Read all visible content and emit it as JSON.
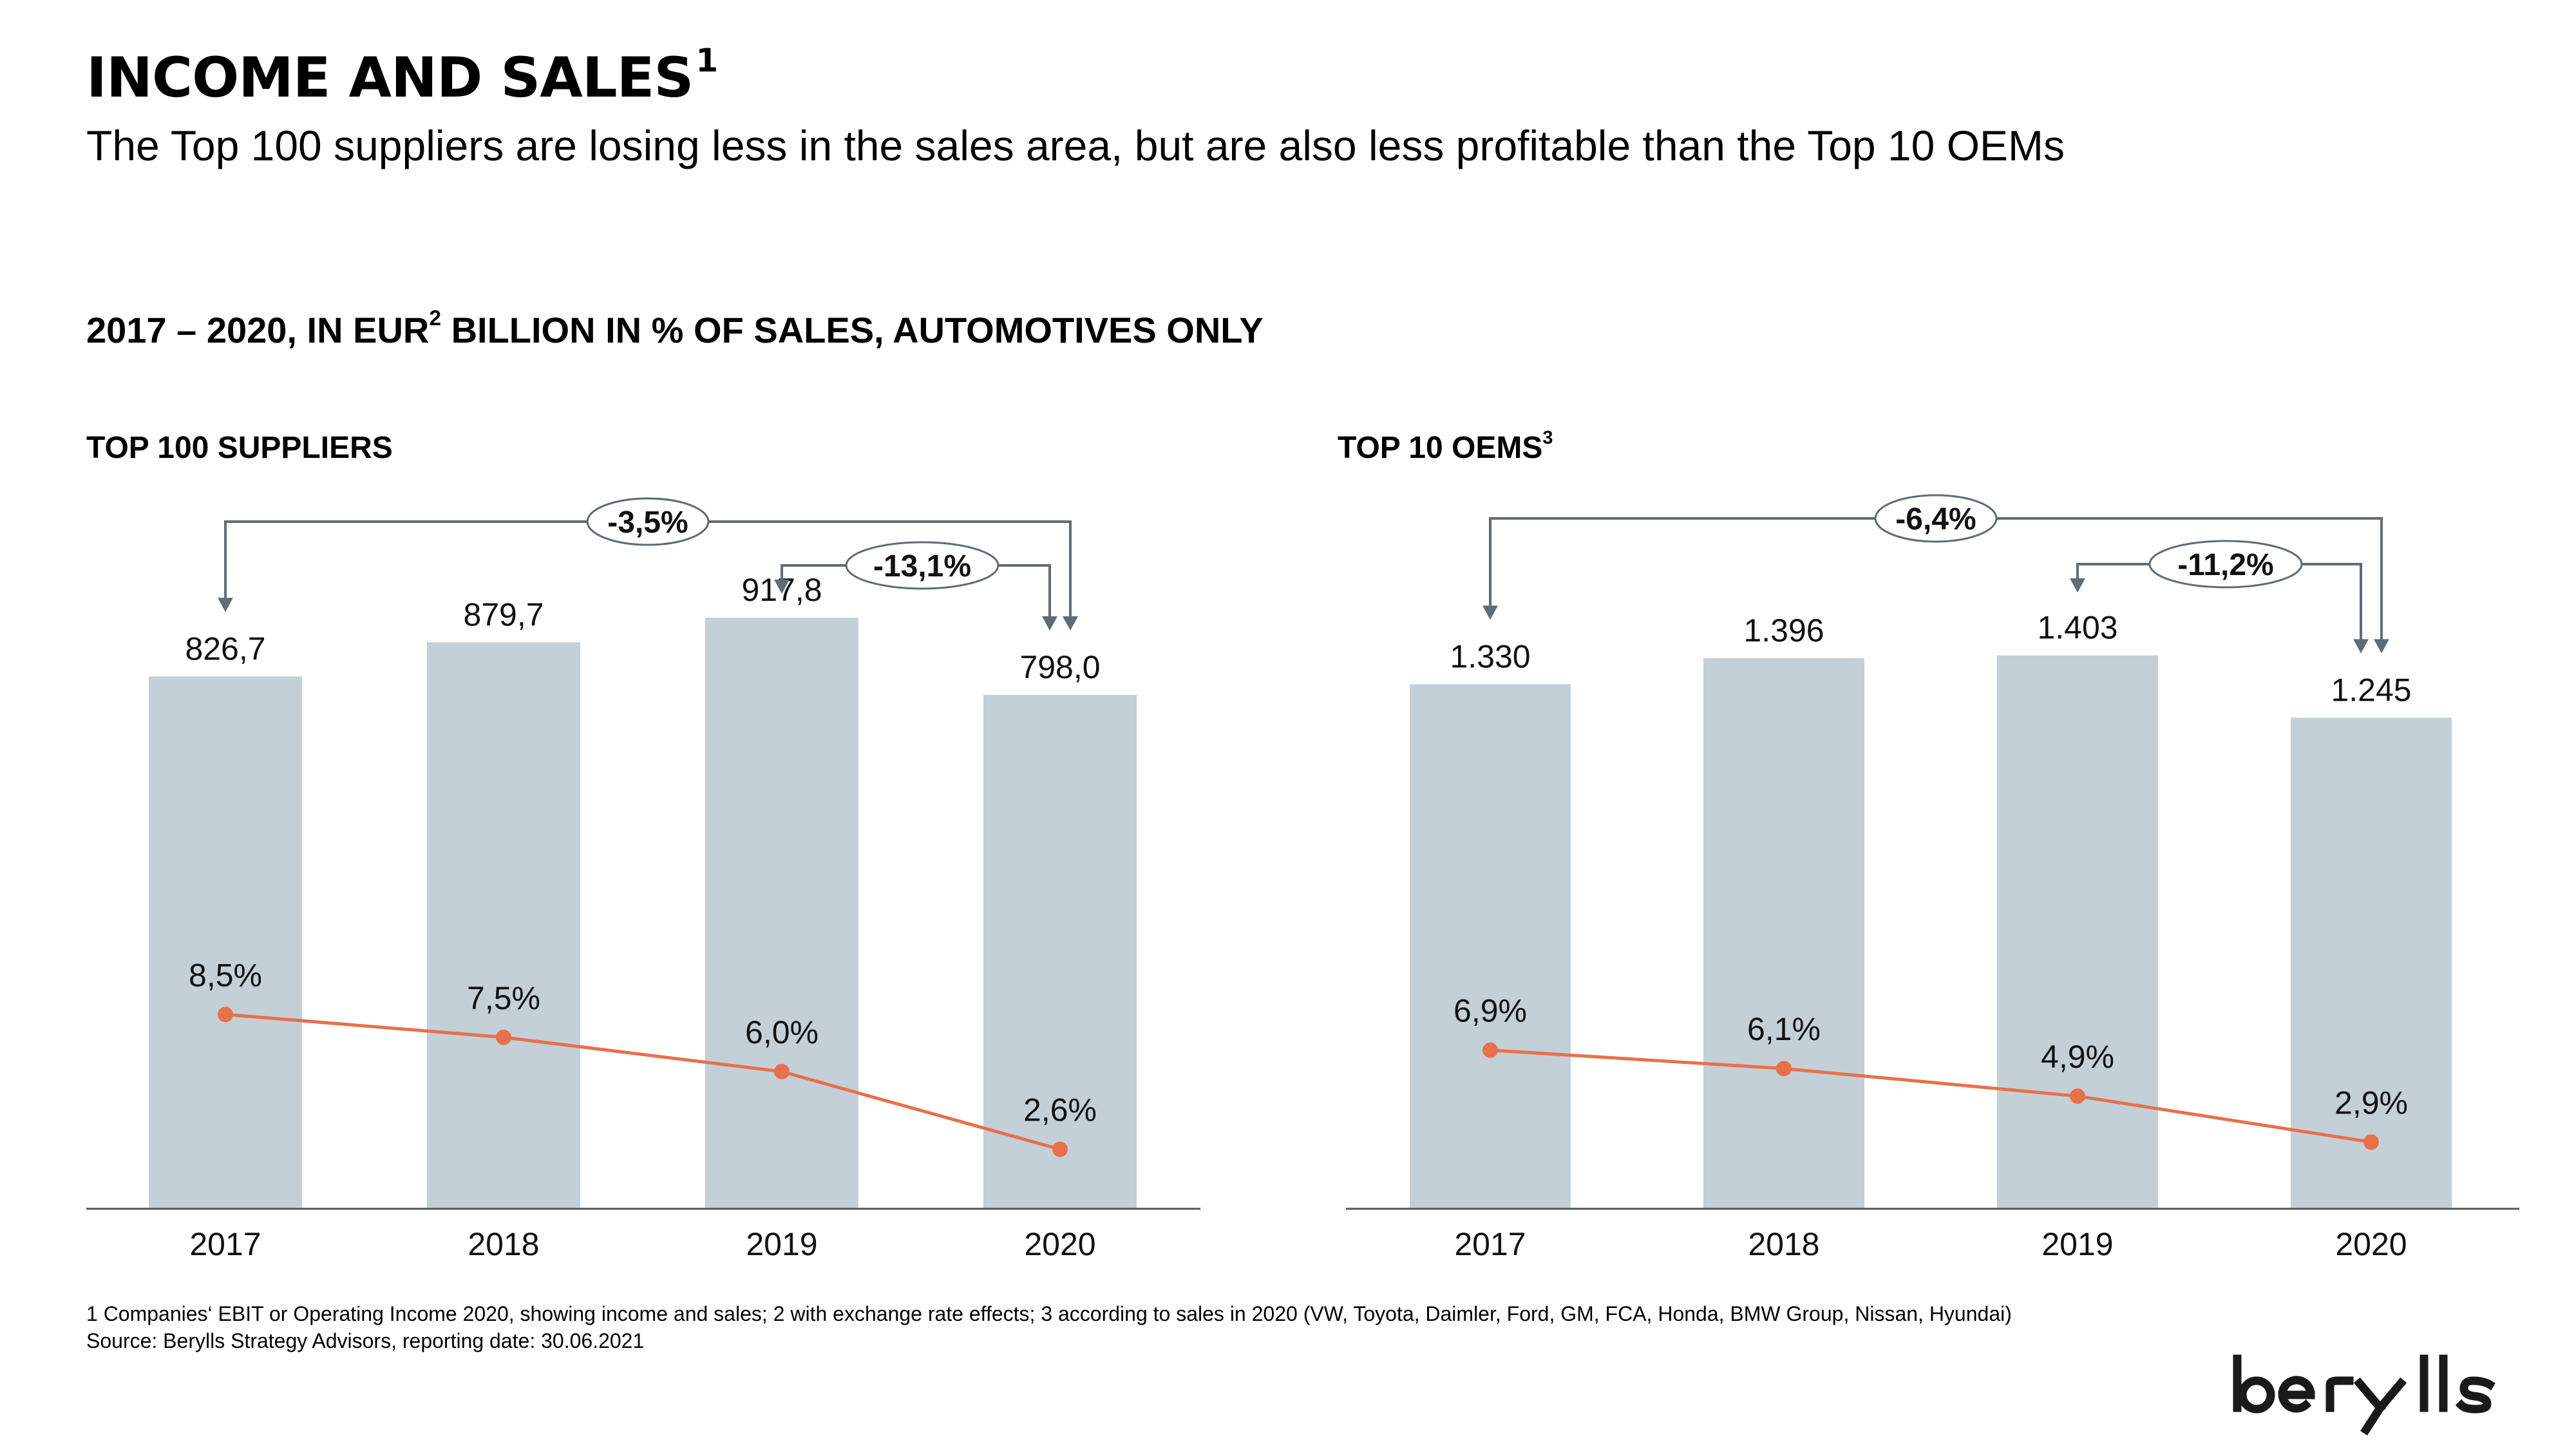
{
  "title": "INCOME AND SALES",
  "title_sup": "1",
  "subtitle": "The Top 100 suppliers are losing less in the sales area, but are also less profitable than the Top 10 OEMs",
  "section_heading": {
    "part1": "2017 – 2020, IN EUR",
    "sup": "2",
    "part2": " BILLION IN % OF SALES, AUTOMOTIVES ONLY"
  },
  "colors": {
    "bar": "#c4d0d8",
    "line": "#e8704a",
    "axis": "#555555",
    "bracket": "#5f6c78"
  },
  "chart_data": [
    {
      "type": "bar",
      "panel_title": "TOP 100 SUPPLIERS",
      "panel_title_sup": "",
      "categories": [
        "2017",
        "2018",
        "2019",
        "2020"
      ],
      "series": [
        {
          "values": [
            826.7,
            879.7,
            917.8,
            798.0
          ],
          "labels": [
            "826,7",
            "879,7",
            "917,8",
            "798,0"
          ]
        },
        {
          "type": "line",
          "values": [
            8.5,
            7.5,
            6.0,
            2.6
          ],
          "labels": [
            "8,5%",
            "7,5%",
            "6,0%",
            "2,6%"
          ]
        }
      ],
      "annotations": [
        {
          "label": "-3,5%",
          "from": "2017",
          "to": "2020"
        },
        {
          "label": "-13,1%",
          "from": "2019",
          "to": "2020"
        }
      ]
    },
    {
      "type": "bar",
      "panel_title": "TOP 10 OEMS",
      "panel_title_sup": "3",
      "categories": [
        "2017",
        "2018",
        "2019",
        "2020"
      ],
      "series": [
        {
          "values": [
            1330,
            1396,
            1403,
            1245
          ],
          "labels": [
            "1.330",
            "1.396",
            "1.403",
            "1.245"
          ]
        },
        {
          "type": "line",
          "values": [
            6.9,
            6.1,
            4.9,
            2.9
          ],
          "labels": [
            "6,9%",
            "6,1%",
            "4,9%",
            "2,9%"
          ]
        }
      ],
      "annotations": [
        {
          "label": "-6,4%",
          "from": "2017",
          "to": "2020"
        },
        {
          "label": "-11,2%",
          "from": "2019",
          "to": "2020"
        }
      ]
    }
  ],
  "footnotes": {
    "line1": "1 Companies‘ EBIT or Operating Income  2020, showing income and sales; 2 with exchange rate effects; 3 according to sales in 2020 (VW, Toyota, Daimler, Ford, GM, FCA, Honda, BMW Group, Nissan, Hyundai)",
    "line2": "Source: Berylls Strategy Advisors, reporting date: 30.06.2021"
  },
  "logo_text": "berylls"
}
